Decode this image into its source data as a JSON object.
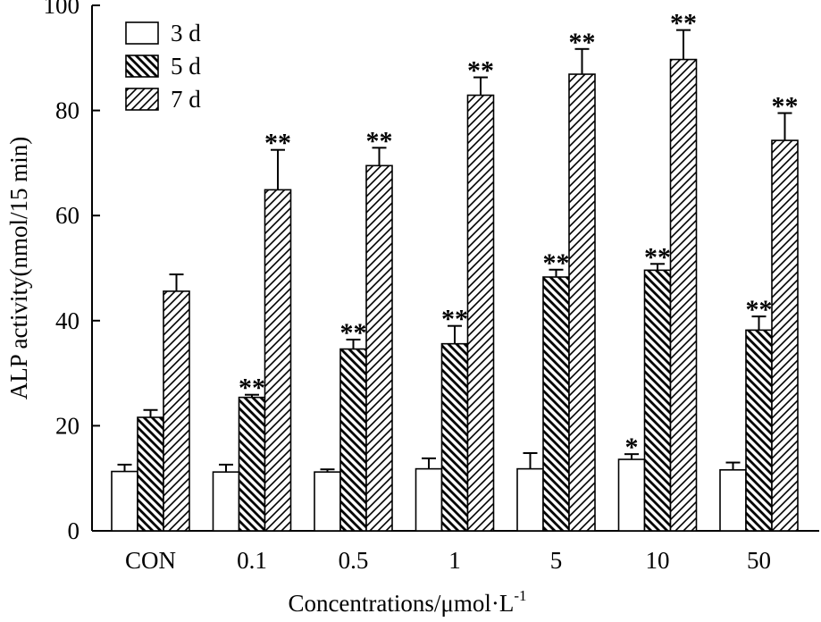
{
  "chart_data": {
    "type": "bar",
    "title": "",
    "xlabel": "Concentrations/μmol·L",
    "xlabel_sup": "-1",
    "ylabel": "ALP activity(nmol/15 min)",
    "ylim": [
      0,
      100
    ],
    "yticks": [
      0,
      20,
      40,
      60,
      80,
      100
    ],
    "grid": false,
    "legend_position": "top-left",
    "categories": [
      "CON",
      "0.1",
      "0.5",
      "1",
      "5",
      "10",
      "50"
    ],
    "series": [
      {
        "name": "3 d",
        "pattern": "none",
        "values": [
          11.3,
          11.2,
          11.2,
          11.8,
          11.8,
          13.6,
          11.6
        ],
        "errors": [
          1.3,
          1.4,
          0.5,
          2.0,
          3.0,
          1.0,
          1.4
        ],
        "significance": [
          "",
          "",
          "",
          "",
          "",
          "*",
          ""
        ]
      },
      {
        "name": "5 d",
        "pattern": "backslash",
        "values": [
          21.6,
          25.4,
          34.6,
          35.6,
          48.3,
          49.6,
          38.2
        ],
        "errors": [
          1.4,
          0.5,
          1.8,
          3.4,
          1.4,
          1.2,
          2.6
        ],
        "significance": [
          "",
          "**",
          "**",
          "**",
          "**",
          "**",
          "**"
        ]
      },
      {
        "name": "7 d",
        "pattern": "slash",
        "values": [
          45.6,
          64.9,
          69.5,
          82.9,
          86.9,
          89.7,
          74.3
        ],
        "errors": [
          3.2,
          7.6,
          3.4,
          3.4,
          4.8,
          5.6,
          5.2
        ],
        "significance": [
          "",
          "**",
          "**",
          "**",
          "**",
          "**",
          "**"
        ]
      }
    ]
  }
}
